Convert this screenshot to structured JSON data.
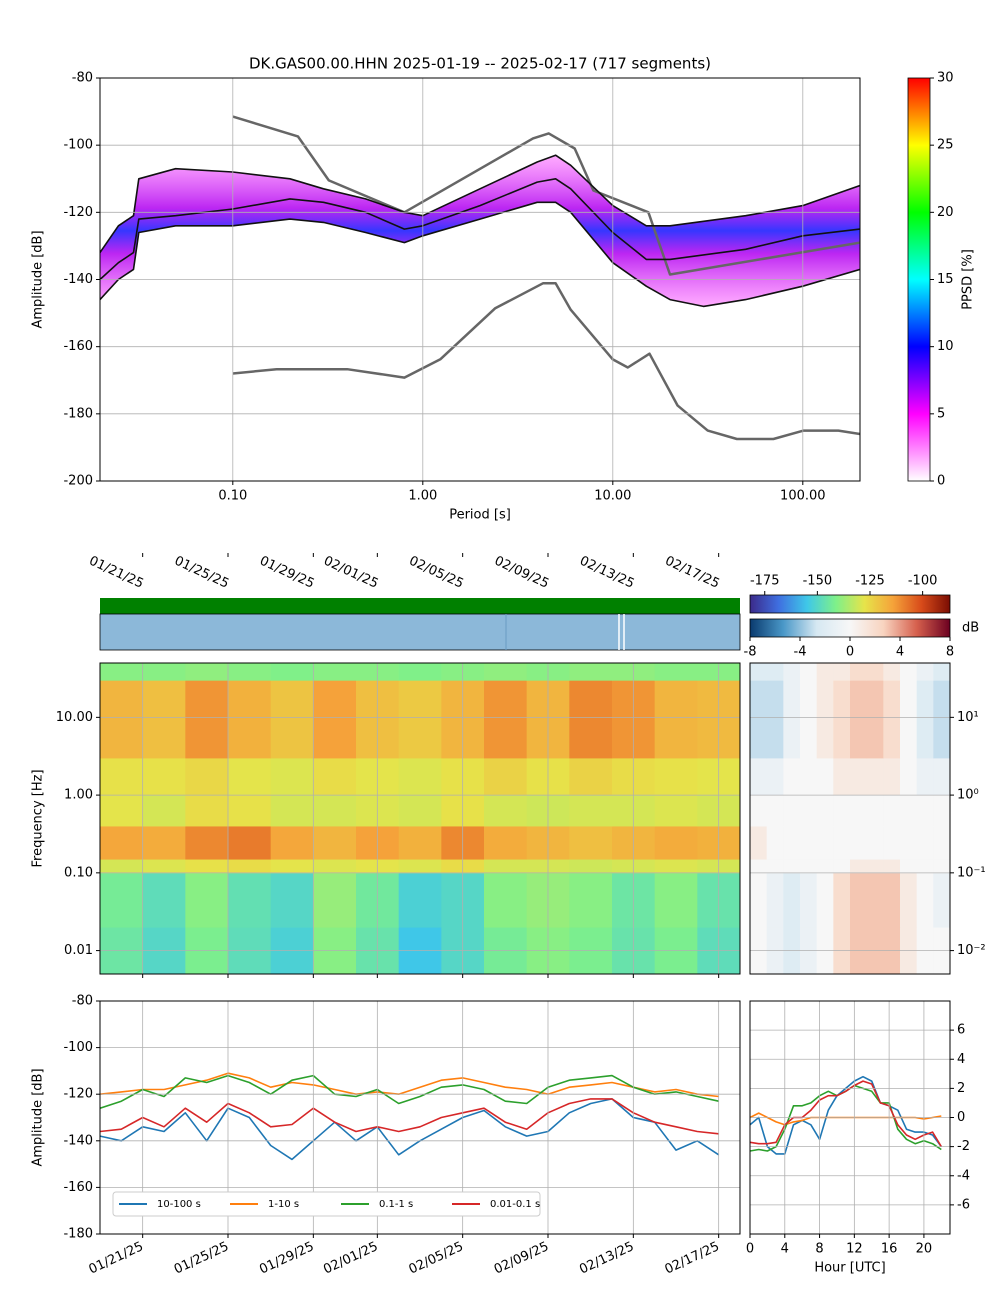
{
  "chart_data": [
    {
      "type": "line",
      "title": "DK.GAS00.00.HHN   2025-01-19 -- 2025-02-17  (717 segments)",
      "x_label": "Period [s]",
      "y_label": "Amplitude [dB]",
      "x_log": true,
      "grid": true,
      "xlim": [
        0.02,
        200
      ],
      "xticks": [
        {
          "value": 0.1,
          "label": "0.10"
        },
        {
          "value": 1,
          "label": "1.00"
        },
        {
          "value": 10,
          "label": "10.00"
        },
        {
          "value": 100,
          "label": "100.00"
        }
      ],
      "ylim": [
        -200,
        -80
      ],
      "yticks": [
        -200,
        -180,
        -160,
        -140,
        -120,
        -100,
        -80
      ],
      "series": [
        {
          "color": "#666666",
          "x": [
            0.1,
            0.22,
            0.32,
            0.8,
            3.8,
            4.6,
            6.3,
            7.9,
            15.4,
            20,
            200
          ],
          "values": [
            -91.5,
            -97.4,
            -110.5,
            -120,
            -98,
            -96.5,
            -101,
            -113.5,
            -120,
            -138.5,
            -129
          ]
        },
        {
          "color": "#666666",
          "x": [
            0.1,
            0.17,
            0.4,
            0.8,
            1.24,
            2.4,
            4.3,
            5,
            6,
            10,
            12,
            15.6,
            21.9,
            31.6,
            45,
            70,
            101,
            154,
            200
          ],
          "values": [
            -168,
            -166.7,
            -166.7,
            -169.2,
            -163.7,
            -148.6,
            -141.1,
            -141.1,
            -149,
            -163.8,
            -166.2,
            -162.1,
            -177.5,
            -185,
            -187.5,
            -187.5,
            -185,
            -185,
            -186
          ]
        },
        {
          "color": "#111111",
          "x": [
            0.02,
            0.025,
            0.03,
            0.032,
            0.05,
            0.1,
            0.2,
            0.3,
            0.5,
            0.8,
            1,
            2,
            4,
            5,
            6,
            10,
            15,
            20,
            50,
            100,
            200
          ],
          "values": [
            -132,
            -124,
            -121,
            -110,
            -107,
            -108,
            -110,
            -113,
            -116,
            -120,
            -121,
            -113,
            -105,
            -103,
            -106,
            -118,
            -124,
            -124,
            -121,
            -118,
            -112
          ]
        },
        {
          "color": "#111111",
          "x": [
            0.02,
            0.025,
            0.03,
            0.032,
            0.05,
            0.1,
            0.2,
            0.3,
            0.5,
            0.8,
            1,
            2,
            4,
            5,
            6,
            10,
            15,
            20,
            50,
            100,
            200
          ],
          "values": [
            -140,
            -135,
            -132,
            -122,
            -121,
            -119,
            -116,
            -117,
            -120,
            -125,
            -124,
            -118,
            -111,
            -110,
            -113,
            -126,
            -134,
            -134,
            -131,
            -127,
            -125
          ]
        },
        {
          "color": "#111111",
          "x": [
            0.02,
            0.025,
            0.03,
            0.032,
            0.05,
            0.1,
            0.2,
            0.3,
            0.5,
            0.8,
            1,
            2,
            4,
            5,
            6,
            10,
            15,
            20,
            30,
            50,
            100,
            200
          ],
          "values": [
            -146,
            -140,
            -137,
            -126,
            -124,
            -124,
            -122,
            -123,
            -126,
            -129,
            -127,
            -122,
            -117,
            -117,
            -120,
            -135,
            -142,
            -146,
            -148,
            -146,
            -142,
            -137
          ]
        }
      ],
      "colorbar": {
        "label": "PPSD [%]",
        "lim": [
          0,
          30
        ],
        "ticks": [
          0,
          5,
          10,
          15,
          20,
          25,
          30
        ],
        "colors": [
          "#ffffff",
          "#ff00ff",
          "#0000ff",
          "#00ffff",
          "#00ff00",
          "#ffff00",
          "#ff0000"
        ]
      }
    },
    {
      "type": "heatmap",
      "y_label": "Frequency [Hz]",
      "y_log": true,
      "grid": true,
      "xlim": [
        "2025-01-19",
        "2025-02-18"
      ],
      "xticks": [
        {
          "value": "2025-01-21",
          "label": "01/21/25"
        },
        {
          "value": "2025-01-25",
          "label": "01/25/25"
        },
        {
          "value": "2025-01-29",
          "label": "01/29/25"
        },
        {
          "value": "2025-02-01",
          "label": "02/01/25"
        },
        {
          "value": "2025-02-05",
          "label": "02/05/25"
        },
        {
          "value": "2025-02-09",
          "label": "02/09/25"
        },
        {
          "value": "2025-02-13",
          "label": "02/13/25"
        },
        {
          "value": "2025-02-17",
          "label": "02/17/25"
        }
      ],
      "ylim": [
        0.005,
        50
      ],
      "yticks": [
        {
          "value": 0.01,
          "label": "0.01"
        },
        {
          "value": 0.1,
          "label": "0.10"
        },
        {
          "value": 1,
          "label": "1.00"
        },
        {
          "value": 10,
          "label": "10.00"
        }
      ],
      "x_edges": [
        "2025-01-19",
        "2025-01-21",
        "2025-01-23",
        "2025-01-25",
        "2025-01-27",
        "2025-01-29",
        "2025-01-31",
        "2025-02-02",
        "2025-02-04",
        "2025-02-06",
        "2025-02-08",
        "2025-02-10",
        "2025-02-12",
        "2025-02-14",
        "2025-02-16",
        "2025-02-18"
      ],
      "y_edges": [
        0.005,
        0.02,
        0.1,
        0.15,
        0.4,
        1,
        3,
        30,
        50
      ],
      "values": [
        [
          -145,
          -150,
          -142,
          -148,
          -152,
          -140,
          -146,
          -155,
          -150,
          -143,
          -140,
          -142,
          -146,
          -142,
          -148
        ],
        [
          -143,
          -148,
          -140,
          -147,
          -150,
          -138,
          -144,
          -152,
          -150,
          -140,
          -138,
          -140,
          -145,
          -140,
          -146
        ],
        [
          -130,
          -129,
          -127,
          -126,
          -128,
          -129,
          -128,
          -129,
          -126,
          -130,
          -130,
          -131,
          -130,
          -129,
          -130
        ],
        [
          -115,
          -116,
          -110,
          -108,
          -115,
          -118,
          -114,
          -117,
          -110,
          -116,
          -118,
          -120,
          -118,
          -116,
          -117
        ],
        [
          -128,
          -130,
          -126,
          -127,
          -130,
          -130,
          -129,
          -130,
          -127,
          -130,
          -131,
          -130,
          -130,
          -129,
          -130
        ],
        [
          -127,
          -127,
          -125,
          -128,
          -129,
          -126,
          -128,
          -129,
          -127,
          -124,
          -127,
          -124,
          -126,
          -127,
          -128
        ],
        [
          -118,
          -120,
          -112,
          -117,
          -121,
          -114,
          -120,
          -122,
          -118,
          -112,
          -118,
          -110,
          -112,
          -118,
          -119
        ],
        [
          -140,
          -140,
          -139,
          -140,
          -141,
          -140,
          -140,
          -141,
          -140,
          -139,
          -140,
          -139,
          -139,
          -140,
          -140
        ]
      ],
      "colorbar": {
        "lim": [
          -182,
          -87
        ],
        "ticks": [
          -175,
          -150,
          -125,
          -100
        ],
        "colors": [
          "#3b2a8a",
          "#3f6fe0",
          "#3fc8e8",
          "#7ef08a",
          "#e6e44a",
          "#f5a33a",
          "#d84b1a",
          "#7a0d03"
        ]
      }
    },
    {
      "type": "heatmap",
      "y_log": true,
      "grid": true,
      "xlim": [
        0,
        24
      ],
      "ylim": [
        0.005,
        50
      ],
      "yticks": [
        {
          "value": 0.01,
          "label": "10⁻²"
        },
        {
          "value": 0.1,
          "label": "10⁻¹"
        },
        {
          "value": 1,
          "label": "10⁰"
        },
        {
          "value": 10,
          "label": "10¹"
        }
      ],
      "x_edges": [
        0,
        2,
        4,
        6,
        8,
        10,
        12,
        14,
        16,
        18,
        20,
        22,
        24
      ],
      "y_edges": [
        0.005,
        0.02,
        0.1,
        0.15,
        0.4,
        1,
        3,
        30,
        50
      ],
      "values": [
        [
          0,
          -1,
          -2,
          -1,
          0,
          2,
          3,
          3,
          3,
          1,
          0,
          0
        ],
        [
          0,
          -1,
          -2,
          -1,
          0,
          2,
          3,
          3,
          3,
          1,
          0,
          -1
        ],
        [
          0,
          0,
          0,
          0,
          0,
          0,
          1,
          1,
          1,
          0,
          0,
          0
        ],
        [
          1,
          0,
          0,
          0,
          0,
          0,
          0,
          0,
          0,
          0,
          0,
          0
        ],
        [
          0,
          0,
          0,
          0,
          0,
          0,
          0,
          0,
          0,
          0,
          0,
          0
        ],
        [
          -1,
          -1,
          0,
          0,
          0,
          1,
          1,
          1,
          1,
          0,
          -1,
          -1
        ],
        [
          -3,
          -3,
          -1,
          0,
          1,
          2,
          3,
          3,
          2,
          0,
          -2,
          -3
        ],
        [
          -2,
          -2,
          -1,
          0,
          1,
          1,
          2,
          2,
          1,
          0,
          -1,
          -2
        ]
      ],
      "colorbar": {
        "label": "dB",
        "lim": [
          -8,
          8
        ],
        "ticks": [
          -8,
          -4,
          0,
          4,
          8
        ],
        "colors": [
          "#0a3a6e",
          "#4a98c8",
          "#d6e8f2",
          "#f7f7f7",
          "#f8d4c0",
          "#d6604d",
          "#6b0020"
        ]
      }
    },
    {
      "type": "line",
      "y_label": "Amplitude [dB]",
      "grid": true,
      "legend": "lower-left",
      "xlim": [
        "2025-01-19",
        "2025-02-18"
      ],
      "xticks": [
        {
          "value": "2025-01-21",
          "label": "01/21/25"
        },
        {
          "value": "2025-01-25",
          "label": "01/25/25"
        },
        {
          "value": "2025-01-29",
          "label": "01/29/25"
        },
        {
          "value": "2025-02-01",
          "label": "02/01/25"
        },
        {
          "value": "2025-02-05",
          "label": "02/05/25"
        },
        {
          "value": "2025-02-09",
          "label": "02/09/25"
        },
        {
          "value": "2025-02-13",
          "label": "02/13/25"
        },
        {
          "value": "2025-02-17",
          "label": "02/17/25"
        }
      ],
      "ylim": [
        -180,
        -80
      ],
      "yticks": [
        -180,
        -160,
        -140,
        -120,
        -100,
        -80
      ],
      "x": [
        "2025-01-19",
        "2025-01-20",
        "2025-01-21",
        "2025-01-22",
        "2025-01-23",
        "2025-01-24",
        "2025-01-25",
        "2025-01-26",
        "2025-01-27",
        "2025-01-28",
        "2025-01-29",
        "2025-01-30",
        "2025-01-31",
        "2025-02-01",
        "2025-02-02",
        "2025-02-03",
        "2025-02-04",
        "2025-02-05",
        "2025-02-06",
        "2025-02-07",
        "2025-02-08",
        "2025-02-09",
        "2025-02-10",
        "2025-02-11",
        "2025-02-12",
        "2025-02-13",
        "2025-02-14",
        "2025-02-15",
        "2025-02-16",
        "2025-02-17"
      ],
      "series": [
        {
          "name": "10-100 s",
          "color": "#1f77b4",
          "values": [
            -138,
            -140,
            -134,
            -136,
            -128,
            -140,
            -126,
            -130,
            -142,
            -148,
            -140,
            -132,
            -140,
            -134,
            -146,
            -140,
            -135,
            -130,
            -127,
            -134,
            -138,
            -136,
            -128,
            -124,
            -122,
            -130,
            -132,
            -144,
            -140,
            -146
          ]
        },
        {
          "name": "1-10 s",
          "color": "#ff7f0e",
          "values": [
            -120,
            -119,
            -118,
            -118,
            -116,
            -114,
            -111,
            -113,
            -117,
            -115,
            -116,
            -118,
            -120,
            -119,
            -120,
            -117,
            -114,
            -113,
            -115,
            -117,
            -118,
            -120,
            -117,
            -116,
            -115,
            -117,
            -119,
            -118,
            -120,
            -121
          ]
        },
        {
          "name": "0.1-1 s",
          "color": "#2ca02c",
          "values": [
            -126,
            -123,
            -118,
            -121,
            -113,
            -115,
            -112,
            -115,
            -120,
            -114,
            -112,
            -120,
            -121,
            -118,
            -124,
            -121,
            -117,
            -116,
            -118,
            -123,
            -124,
            -117,
            -114,
            -113,
            -112,
            -117,
            -120,
            -119,
            -121,
            -123
          ]
        },
        {
          "name": "0.01-0.1 s",
          "color": "#d62728",
          "values": [
            -136,
            -135,
            -130,
            -134,
            -126,
            -132,
            -124,
            -128,
            -134,
            -133,
            -126,
            -132,
            -136,
            -134,
            -136,
            -134,
            -130,
            -128,
            -126,
            -132,
            -135,
            -128,
            -124,
            -122,
            -122,
            -128,
            -132,
            -134,
            -136,
            -137
          ]
        }
      ]
    },
    {
      "type": "line",
      "x_label": "Hour [UTC]",
      "grid": true,
      "xlim": [
        0,
        23
      ],
      "xticks": [
        0,
        4,
        8,
        12,
        16,
        20
      ],
      "ylim": [
        -8,
        8
      ],
      "yticks": [
        -6,
        -4,
        -2,
        0,
        2,
        4,
        6
      ],
      "x": [
        0,
        1,
        2,
        3,
        4,
        5,
        6,
        7,
        8,
        9,
        10,
        11,
        12,
        13,
        14,
        15,
        16,
        17,
        18,
        19,
        20,
        21,
        22
      ],
      "series": [
        {
          "color": "#1f77b4",
          "values": [
            -0.5,
            0,
            -2,
            -2.5,
            -2.5,
            -0.5,
            -0.2,
            -0.5,
            -1.5,
            0.5,
            1.5,
            2,
            2.5,
            2.8,
            2.5,
            1,
            0.8,
            0.5,
            -0.8,
            -1,
            -1,
            -1.2,
            -2
          ]
        },
        {
          "color": "#ff7f0e",
          "values": [
            0,
            0.3,
            0,
            -0.3,
            -0.5,
            -0.3,
            -0.2,
            0,
            0,
            0,
            0,
            0,
            0,
            0,
            0,
            0,
            0,
            0,
            0,
            0,
            -0.1,
            0,
            0.1
          ]
        },
        {
          "color": "#2ca02c",
          "values": [
            -2.3,
            -2.2,
            -2.3,
            -2,
            -0.8,
            0.8,
            0.8,
            1,
            1.5,
            1.8,
            1.5,
            1.8,
            2.2,
            2,
            1.8,
            1,
            1,
            -0.8,
            -1.5,
            -1.8,
            -1.6,
            -1.8,
            -2.2
          ]
        },
        {
          "color": "#d62728",
          "values": [
            -1.7,
            -1.8,
            -1.8,
            -1.7,
            -0.5,
            0,
            0,
            0.5,
            1.2,
            1.5,
            1.5,
            1.8,
            2.2,
            2.5,
            2.3,
            1,
            0.8,
            -0.5,
            -1.2,
            -1.5,
            -1.2,
            -1,
            -2
          ]
        }
      ]
    }
  ]
}
